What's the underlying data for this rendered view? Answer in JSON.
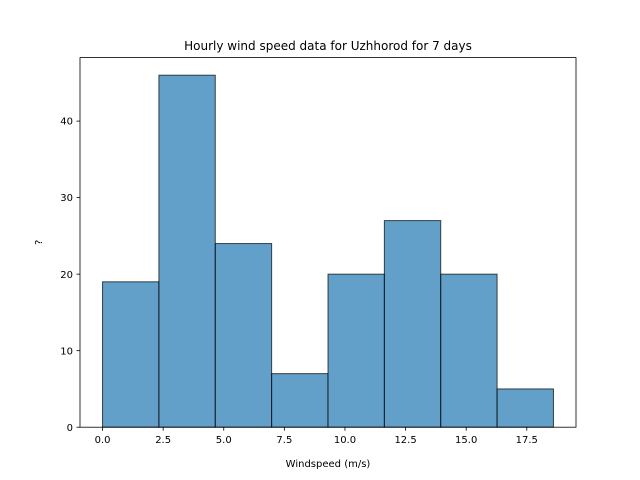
{
  "chart_data": {
    "type": "bar",
    "title": "Hourly wind speed data for Uzhhorod for 7 days",
    "xlabel": "Windspeed (m/s)",
    "ylabel": "?",
    "bin_edges": [
      0.0,
      2.325,
      4.65,
      6.975,
      9.3,
      11.625,
      13.95,
      16.275,
      18.6
    ],
    "values": [
      19,
      46,
      24,
      7,
      20,
      27,
      20,
      5
    ],
    "xlim": [
      -0.93,
      19.53
    ],
    "ylim": [
      0,
      48.3
    ],
    "xticks": [
      0.0,
      2.5,
      5.0,
      7.5,
      10.0,
      12.5,
      15.0,
      17.5
    ],
    "xtick_labels": [
      "0.0",
      "2.5",
      "5.0",
      "7.5",
      "10.0",
      "12.5",
      "15.0",
      "17.5"
    ],
    "yticks": [
      0,
      10,
      20,
      30,
      40
    ],
    "ytick_labels": [
      "0",
      "10",
      "20",
      "30",
      "40"
    ],
    "bar_color": "#1f77b4",
    "bar_opacity": 0.7,
    "edge_color": "#000000",
    "grid": false,
    "legend": false
  }
}
